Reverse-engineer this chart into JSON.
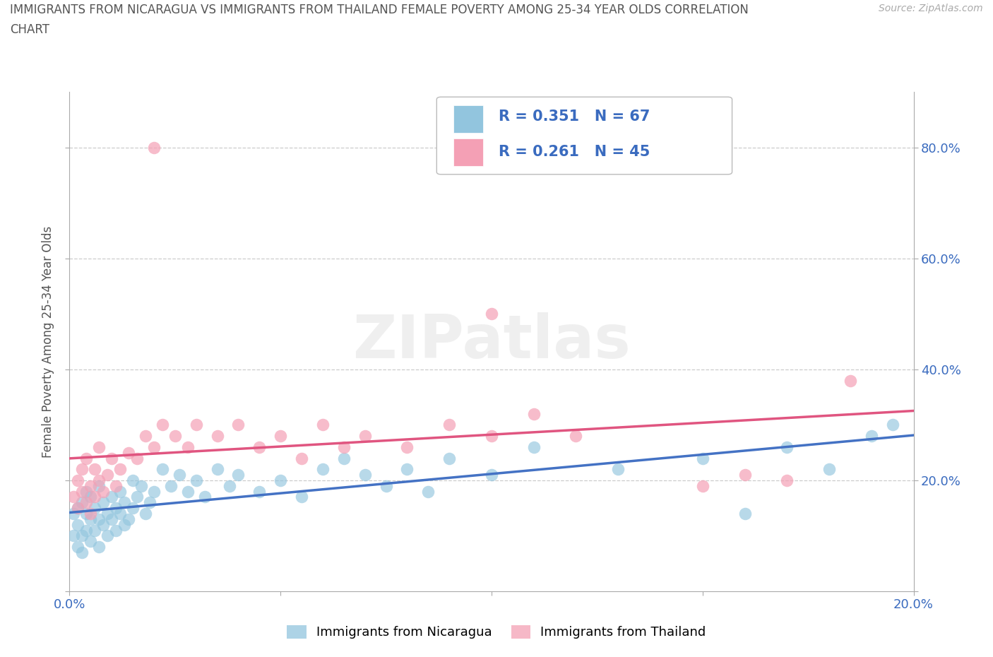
{
  "title_line1": "IMMIGRANTS FROM NICARAGUA VS IMMIGRANTS FROM THAILAND FEMALE POVERTY AMONG 25-34 YEAR OLDS CORRELATION",
  "title_line2": "CHART",
  "source": "Source: ZipAtlas.com",
  "ylabel": "Female Poverty Among 25-34 Year Olds",
  "xlim": [
    0.0,
    0.2
  ],
  "ylim": [
    0.0,
    0.9
  ],
  "nicaragua_color": "#92c5de",
  "thailand_color": "#f4a0b5",
  "nic_line_color": "#4472c4",
  "thai_line_color": "#e05580",
  "nicaragua_R": 0.351,
  "nicaragua_N": 67,
  "thailand_R": 0.261,
  "thailand_N": 45,
  "legend_label1": "Immigrants from Nicaragua",
  "legend_label2": "Immigrants from Thailand",
  "nicaragua_x": [
    0.001,
    0.001,
    0.002,
    0.002,
    0.002,
    0.003,
    0.003,
    0.003,
    0.004,
    0.004,
    0.004,
    0.005,
    0.005,
    0.005,
    0.006,
    0.006,
    0.007,
    0.007,
    0.007,
    0.008,
    0.008,
    0.009,
    0.009,
    0.01,
    0.01,
    0.011,
    0.011,
    0.012,
    0.012,
    0.013,
    0.013,
    0.014,
    0.015,
    0.015,
    0.016,
    0.017,
    0.018,
    0.019,
    0.02,
    0.022,
    0.024,
    0.026,
    0.028,
    0.03,
    0.032,
    0.035,
    0.038,
    0.04,
    0.045,
    0.05,
    0.055,
    0.06,
    0.065,
    0.07,
    0.075,
    0.08,
    0.085,
    0.09,
    0.1,
    0.11,
    0.13,
    0.15,
    0.16,
    0.17,
    0.18,
    0.19,
    0.195
  ],
  "nicaragua_y": [
    0.14,
    0.1,
    0.15,
    0.12,
    0.08,
    0.16,
    0.1,
    0.07,
    0.14,
    0.11,
    0.18,
    0.13,
    0.09,
    0.17,
    0.15,
    0.11,
    0.13,
    0.19,
    0.08,
    0.16,
    0.12,
    0.14,
    0.1,
    0.17,
    0.13,
    0.15,
    0.11,
    0.18,
    0.14,
    0.12,
    0.16,
    0.13,
    0.2,
    0.15,
    0.17,
    0.19,
    0.14,
    0.16,
    0.18,
    0.22,
    0.19,
    0.21,
    0.18,
    0.2,
    0.17,
    0.22,
    0.19,
    0.21,
    0.18,
    0.2,
    0.17,
    0.22,
    0.24,
    0.21,
    0.19,
    0.22,
    0.18,
    0.24,
    0.21,
    0.26,
    0.22,
    0.24,
    0.14,
    0.26,
    0.22,
    0.28,
    0.3
  ],
  "thailand_x": [
    0.001,
    0.002,
    0.002,
    0.003,
    0.003,
    0.004,
    0.004,
    0.005,
    0.005,
    0.006,
    0.006,
    0.007,
    0.007,
    0.008,
    0.009,
    0.01,
    0.011,
    0.012,
    0.014,
    0.016,
    0.018,
    0.02,
    0.022,
    0.025,
    0.028,
    0.03,
    0.035,
    0.04,
    0.045,
    0.05,
    0.055,
    0.06,
    0.065,
    0.07,
    0.08,
    0.09,
    0.1,
    0.11,
    0.12,
    0.15,
    0.16,
    0.17,
    0.185,
    0.02,
    0.1
  ],
  "thailand_y": [
    0.17,
    0.2,
    0.15,
    0.18,
    0.22,
    0.16,
    0.24,
    0.19,
    0.14,
    0.22,
    0.17,
    0.2,
    0.26,
    0.18,
    0.21,
    0.24,
    0.19,
    0.22,
    0.25,
    0.24,
    0.28,
    0.26,
    0.3,
    0.28,
    0.26,
    0.3,
    0.28,
    0.3,
    0.26,
    0.28,
    0.24,
    0.3,
    0.26,
    0.28,
    0.26,
    0.3,
    0.28,
    0.32,
    0.28,
    0.19,
    0.21,
    0.2,
    0.38,
    0.8,
    0.5
  ]
}
